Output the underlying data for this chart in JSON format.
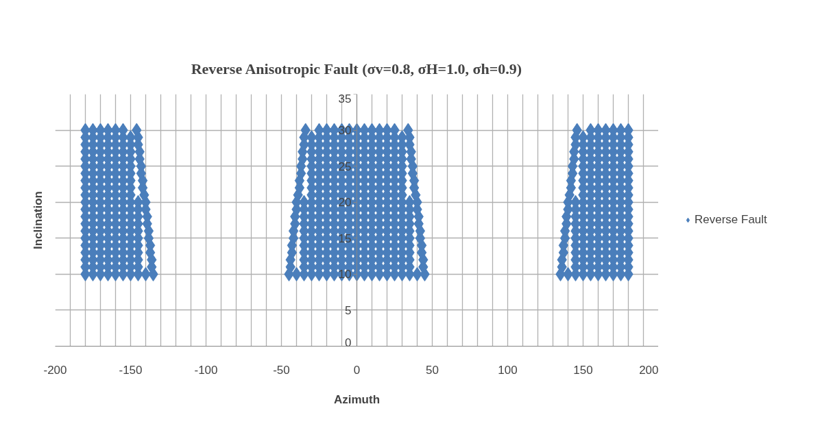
{
  "chart_data": {
    "type": "scatter",
    "title": "Reverse Anisotropic Fault (σv=0.8, σH=1.0, σh=0.9)",
    "xlabel": "Azimuth",
    "ylabel": "Inclination",
    "xlim": [
      -200,
      200
    ],
    "ylim": [
      0,
      35
    ],
    "xticks": [
      -200,
      {
        "value": -190,
        "label": null
      },
      {
        "value": -180,
        "label": null
      },
      {
        "value": -170,
        "label": null
      },
      {
        "value": -160,
        "label": null
      },
      -150,
      {
        "value": -140,
        "label": null
      },
      {
        "value": -130,
        "label": null
      },
      {
        "value": -120,
        "label": null
      },
      {
        "value": -110,
        "label": null
      },
      -100,
      {
        "value": -90,
        "label": null
      },
      {
        "value": -80,
        "label": null
      },
      {
        "value": -70,
        "label": null
      },
      {
        "value": -60,
        "label": null
      },
      -50,
      {
        "value": -40,
        "label": null
      },
      {
        "value": -30,
        "label": null
      },
      {
        "value": -20,
        "label": null
      },
      {
        "value": -10,
        "label": null
      },
      0,
      {
        "value": 10,
        "label": null
      },
      {
        "value": 20,
        "label": null
      },
      {
        "value": 30,
        "label": null
      },
      {
        "value": 40,
        "label": null
      },
      50,
      {
        "value": 60,
        "label": null
      },
      {
        "value": 70,
        "label": null
      },
      {
        "value": 80,
        "label": null
      },
      {
        "value": 90,
        "label": null
      },
      100,
      {
        "value": 110,
        "label": null
      },
      {
        "value": 120,
        "label": null
      },
      {
        "value": 130,
        "label": null
      },
      {
        "value": 140,
        "label": null
      },
      150,
      {
        "value": 160,
        "label": null
      },
      {
        "value": 170,
        "label": null
      },
      {
        "value": 180,
        "label": null
      },
      {
        "value": 190,
        "label": null
      },
      200
    ],
    "yticks": [
      0,
      5,
      10,
      15,
      20,
      25,
      30,
      35
    ],
    "grid": true,
    "legend": "right",
    "marker": "diamond",
    "series": [
      {
        "name": "Reverse Fault",
        "color": "#4a7ebb",
        "x": [
          -180,
          -175,
          -170,
          -165,
          -160,
          -155,
          -150,
          -145,
          -140,
          -135,
          -45,
          -40,
          -35,
          -30,
          -25,
          -20,
          -15,
          -10,
          -5,
          0,
          5,
          10,
          15,
          20,
          25,
          30,
          35,
          40,
          45,
          135,
          140,
          145,
          150,
          155,
          160,
          165,
          170,
          175,
          180,
          -180,
          -175,
          -170,
          -165,
          -160,
          -155,
          -150,
          -145,
          -136,
          -44,
          -35,
          -30,
          -25,
          -20,
          -15,
          -10,
          -5,
          0,
          5,
          10,
          15,
          20,
          25,
          30,
          35,
          44,
          136,
          145,
          150,
          155,
          160,
          165,
          170,
          175,
          180,
          -180,
          -175,
          -170,
          -165,
          -160,
          -155,
          -150,
          -145,
          -136,
          -44,
          -35,
          -30,
          -25,
          -20,
          -15,
          -10,
          -5,
          0,
          5,
          10,
          15,
          20,
          25,
          30,
          35,
          44,
          136,
          145,
          150,
          155,
          160,
          165,
          170,
          175,
          180,
          -180,
          -175,
          -170,
          -165,
          -160,
          -155,
          -150,
          -145,
          -137,
          -43,
          -35,
          -30,
          -25,
          -20,
          -15,
          -10,
          -5,
          0,
          5,
          10,
          15,
          20,
          25,
          30,
          35,
          43,
          137,
          145,
          150,
          155,
          160,
          165,
          170,
          175,
          180,
          -180,
          -175,
          -170,
          -165,
          -160,
          -155,
          -150,
          -145,
          -137,
          -43,
          -35,
          -30,
          -25,
          -20,
          -15,
          -10,
          -5,
          0,
          5,
          10,
          15,
          20,
          25,
          30,
          35,
          43,
          137,
          145,
          150,
          155,
          160,
          165,
          170,
          175,
          180,
          -180,
          -175,
          -170,
          -165,
          -160,
          -155,
          -150,
          -145,
          -138,
          -42,
          -35,
          -30,
          -25,
          -20,
          -15,
          -10,
          -5,
          0,
          5,
          10,
          15,
          20,
          25,
          30,
          35,
          42,
          138,
          145,
          150,
          155,
          160,
          165,
          170,
          175,
          180,
          -180,
          -175,
          -170,
          -165,
          -160,
          -155,
          -150,
          -145,
          -138,
          -42,
          -35,
          -30,
          -25,
          -20,
          -15,
          -10,
          -5,
          0,
          5,
          10,
          15,
          20,
          25,
          30,
          35,
          42,
          138,
          145,
          150,
          155,
          160,
          165,
          170,
          175,
          180,
          -180,
          -175,
          -170,
          -165,
          -160,
          -155,
          -150,
          -145,
          -139,
          -41,
          -35,
          -30,
          -25,
          -20,
          -15,
          -10,
          -5,
          0,
          5,
          10,
          15,
          20,
          25,
          30,
          35,
          41,
          139,
          145,
          150,
          155,
          160,
          165,
          170,
          175,
          180,
          -180,
          -175,
          -170,
          -165,
          -160,
          -155,
          -150,
          -145,
          -139,
          -41,
          -35,
          -30,
          -25,
          -20,
          -15,
          -10,
          -5,
          0,
          5,
          10,
          15,
          20,
          25,
          30,
          35,
          41,
          139,
          145,
          150,
          155,
          160,
          165,
          170,
          175,
          180,
          -180,
          -175,
          -170,
          -165,
          -160,
          -155,
          -150,
          -145,
          -140,
          -40,
          -35,
          -30,
          -25,
          -20,
          -15,
          -10,
          -5,
          0,
          5,
          10,
          15,
          20,
          25,
          30,
          35,
          40,
          140,
          145,
          150,
          155,
          160,
          165,
          170,
          175,
          180,
          -180,
          -175,
          -170,
          -165,
          -160,
          -155,
          -150,
          -145,
          -140,
          -40,
          -35,
          -30,
          -25,
          -20,
          -15,
          -10,
          -5,
          0,
          5,
          10,
          15,
          20,
          25,
          30,
          35,
          40,
          140,
          145,
          150,
          155,
          160,
          165,
          170,
          175,
          180,
          -180,
          -175,
          -170,
          -165,
          -160,
          -155,
          -150,
          -141,
          -39,
          -30,
          -25,
          -20,
          -15,
          -10,
          -5,
          0,
          5,
          10,
          15,
          20,
          25,
          30,
          39,
          141,
          150,
          155,
          160,
          165,
          170,
          175,
          180,
          -180,
          -175,
          -170,
          -165,
          -160,
          -155,
          -150,
          -142,
          -38,
          -30,
          -25,
          -20,
          -15,
          -10,
          -5,
          0,
          5,
          10,
          15,
          20,
          25,
          30,
          38,
          142,
          150,
          155,
          160,
          165,
          170,
          175,
          180,
          -180,
          -175,
          -170,
          -165,
          -160,
          -155,
          -150,
          -142,
          -38,
          -30,
          -25,
          -20,
          -15,
          -10,
          -5,
          0,
          5,
          10,
          15,
          20,
          25,
          30,
          38,
          142,
          150,
          155,
          160,
          165,
          170,
          175,
          180,
          -180,
          -175,
          -170,
          -165,
          -160,
          -155,
          -150,
          -143,
          -37,
          -30,
          -25,
          -20,
          -15,
          -10,
          -5,
          0,
          5,
          10,
          15,
          20,
          25,
          30,
          37,
          143,
          150,
          155,
          160,
          165,
          170,
          175,
          180,
          -180,
          -175,
          -170,
          -165,
          -160,
          -155,
          -150,
          -143,
          -37,
          -30,
          -25,
          -20,
          -15,
          -10,
          -5,
          0,
          5,
          10,
          15,
          20,
          25,
          30,
          37,
          143,
          150,
          155,
          160,
          165,
          170,
          175,
          180,
          -180,
          -175,
          -170,
          -165,
          -160,
          -155,
          -150,
          -144,
          -36,
          -30,
          -25,
          -20,
          -15,
          -10,
          -5,
          0,
          5,
          10,
          15,
          20,
          25,
          30,
          36,
          144,
          150,
          155,
          160,
          165,
          170,
          175,
          180,
          -180,
          -175,
          -170,
          -165,
          -160,
          -155,
          -150,
          -144,
          -36,
          -30,
          -25,
          -20,
          -15,
          -10,
          -5,
          0,
          5,
          10,
          15,
          20,
          25,
          30,
          36,
          144,
          150,
          155,
          160,
          165,
          170,
          175,
          180,
          -180,
          -175,
          -170,
          -165,
          -160,
          -155,
          -150,
          -145,
          -35,
          -30,
          -25,
          -20,
          -15,
          -10,
          -5,
          0,
          5,
          10,
          15,
          20,
          25,
          30,
          35,
          145,
          150,
          155,
          160,
          165,
          170,
          175,
          180,
          -180,
          -175,
          -170,
          -165,
          -160,
          -155,
          -150,
          -145,
          -35,
          -30,
          -25,
          -20,
          -15,
          -10,
          -5,
          0,
          5,
          10,
          15,
          20,
          25,
          30,
          35,
          145,
          150,
          155,
          160,
          165,
          170,
          175,
          180,
          -180,
          -175,
          -170,
          -165,
          -160,
          -155,
          -146,
          -34,
          -25,
          -20,
          -15,
          -10,
          -5,
          0,
          5,
          10,
          15,
          20,
          25,
          34,
          146,
          155,
          160,
          165,
          170,
          175,
          180
        ],
        "values": [
          10,
          10,
          10,
          10,
          10,
          10,
          10,
          10,
          10,
          10,
          10,
          10,
          10,
          10,
          10,
          10,
          10,
          10,
          10,
          10,
          10,
          10,
          10,
          10,
          10,
          10,
          10,
          10,
          10,
          10,
          10,
          10,
          10,
          10,
          10,
          10,
          10,
          10,
          10,
          11,
          11,
          11,
          11,
          11,
          11,
          11,
          11,
          11,
          11,
          11,
          11,
          11,
          11,
          11,
          11,
          11,
          11,
          11,
          11,
          11,
          11,
          11,
          11,
          11,
          11,
          11,
          11,
          11,
          11,
          11,
          11,
          11,
          11,
          11,
          12,
          12,
          12,
          12,
          12,
          12,
          12,
          12,
          12,
          12,
          12,
          12,
          12,
          12,
          12,
          12,
          12,
          12,
          12,
          12,
          12,
          12,
          12,
          12,
          12,
          12,
          12,
          12,
          12,
          12,
          12,
          12,
          12,
          12,
          12,
          13,
          13,
          13,
          13,
          13,
          13,
          13,
          13,
          13,
          13,
          13,
          13,
          13,
          13,
          13,
          13,
          13,
          13,
          13,
          13,
          13,
          13,
          13,
          13,
          13,
          13,
          13,
          13,
          13,
          13,
          13,
          13,
          13,
          13,
          13,
          14,
          14,
          14,
          14,
          14,
          14,
          14,
          14,
          14,
          14,
          14,
          14,
          14,
          14,
          14,
          14,
          14,
          14,
          14,
          14,
          14,
          14,
          14,
          14,
          14,
          14,
          14,
          14,
          14,
          14,
          14,
          14,
          14,
          14,
          14,
          15,
          15,
          15,
          15,
          15,
          15,
          15,
          15,
          15,
          15,
          15,
          15,
          15,
          15,
          15,
          15,
          15,
          15,
          15,
          15,
          15,
          15,
          15,
          15,
          15,
          15,
          15,
          15,
          15,
          15,
          15,
          15,
          15,
          15,
          15,
          16,
          16,
          16,
          16,
          16,
          16,
          16,
          16,
          16,
          16,
          16,
          16,
          16,
          16,
          16,
          16,
          16,
          16,
          16,
          16,
          16,
          16,
          16,
          16,
          16,
          16,
          16,
          16,
          16,
          16,
          16,
          16,
          16,
          16,
          16,
          17,
          17,
          17,
          17,
          17,
          17,
          17,
          17,
          17,
          17,
          17,
          17,
          17,
          17,
          17,
          17,
          17,
          17,
          17,
          17,
          17,
          17,
          17,
          17,
          17,
          17,
          17,
          17,
          17,
          17,
          17,
          17,
          17,
          17,
          17,
          18,
          18,
          18,
          18,
          18,
          18,
          18,
          18,
          18,
          18,
          18,
          18,
          18,
          18,
          18,
          18,
          18,
          18,
          18,
          18,
          18,
          18,
          18,
          18,
          18,
          18,
          18,
          18,
          18,
          18,
          18,
          18,
          18,
          18,
          18,
          19,
          19,
          19,
          19,
          19,
          19,
          19,
          19,
          19,
          19,
          19,
          19,
          19,
          19,
          19,
          19,
          19,
          19,
          19,
          19,
          19,
          19,
          19,
          19,
          19,
          19,
          19,
          19,
          19,
          19,
          19,
          19,
          19,
          19,
          19,
          20,
          20,
          20,
          20,
          20,
          20,
          20,
          20,
          20,
          20,
          20,
          20,
          20,
          20,
          20,
          20,
          20,
          20,
          20,
          20,
          20,
          20,
          20,
          20,
          20,
          20,
          20,
          20,
          20,
          20,
          20,
          20,
          20,
          20,
          20,
          21,
          21,
          21,
          21,
          21,
          21,
          21,
          21,
          21,
          21,
          21,
          21,
          21,
          21,
          21,
          21,
          21,
          21,
          21,
          21,
          21,
          21,
          21,
          21,
          21,
          21,
          21,
          21,
          21,
          21,
          21,
          22,
          22,
          22,
          22,
          22,
          22,
          22,
          22,
          22,
          22,
          22,
          22,
          22,
          22,
          22,
          22,
          22,
          22,
          22,
          22,
          22,
          22,
          22,
          22,
          22,
          22,
          22,
          22,
          22,
          22,
          22,
          23,
          23,
          23,
          23,
          23,
          23,
          23,
          23,
          23,
          23,
          23,
          23,
          23,
          23,
          23,
          23,
          23,
          23,
          23,
          23,
          23,
          23,
          23,
          23,
          23,
          23,
          23,
          23,
          23,
          23,
          23,
          24,
          24,
          24,
          24,
          24,
          24,
          24,
          24,
          24,
          24,
          24,
          24,
          24,
          24,
          24,
          24,
          24,
          24,
          24,
          24,
          24,
          24,
          24,
          24,
          24,
          24,
          24,
          24,
          24,
          24,
          24,
          25,
          25,
          25,
          25,
          25,
          25,
          25,
          25,
          25,
          25,
          25,
          25,
          25,
          25,
          25,
          25,
          25,
          25,
          25,
          25,
          25,
          25,
          25,
          25,
          25,
          25,
          25,
          25,
          25,
          25,
          25,
          26,
          26,
          26,
          26,
          26,
          26,
          26,
          26,
          26,
          26,
          26,
          26,
          26,
          26,
          26,
          26,
          26,
          26,
          26,
          26,
          26,
          26,
          26,
          26,
          26,
          26,
          26,
          26,
          26,
          26,
          26,
          27,
          27,
          27,
          27,
          27,
          27,
          27,
          27,
          27,
          27,
          27,
          27,
          27,
          27,
          27,
          27,
          27,
          27,
          27,
          27,
          27,
          27,
          27,
          27,
          27,
          27,
          27,
          27,
          27,
          27,
          27,
          28,
          28,
          28,
          28,
          28,
          28,
          28,
          28,
          28,
          28,
          28,
          28,
          28,
          28,
          28,
          28,
          28,
          28,
          28,
          28,
          28,
          28,
          28,
          28,
          28,
          28,
          28,
          28,
          28,
          28,
          28,
          29,
          29,
          29,
          29,
          29,
          29,
          29,
          29,
          29,
          29,
          29,
          29,
          29,
          29,
          29,
          29,
          29,
          29,
          29,
          29,
          29,
          29,
          29,
          29,
          29,
          29,
          29,
          29,
          29,
          29,
          29,
          30,
          30,
          30,
          30,
          30,
          30,
          30,
          30,
          30,
          30,
          30,
          30,
          30,
          30,
          30,
          30,
          30,
          30,
          30,
          30,
          30,
          30,
          30,
          30,
          30,
          30,
          30
        ]
      }
    ]
  }
}
